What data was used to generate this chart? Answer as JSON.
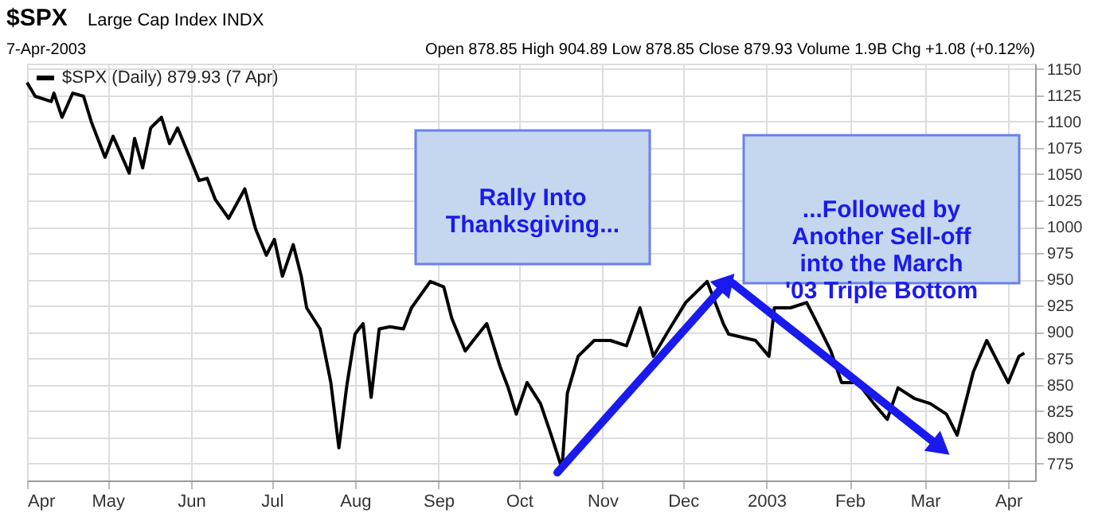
{
  "chart_data": {
    "type": "line",
    "title": "$SPX",
    "subtitle": "Large Cap Index INDX",
    "annotations": [
      "7-Apr-2003",
      "Open 878.85  High 904.89  Low 878.85  Close 879.93  Volume 1.9B  Chg +1.08 (+0.12%)",
      "Rally Into\nThanksgiving...",
      "...Followed by\nAnother Sell-off\ninto the March\n'03 Triple Bottom"
    ],
    "x": [
      "2002-04-01",
      "2002-04-04",
      "2002-04-10",
      "2002-04-11",
      "2002-04-14",
      "2002-04-18",
      "2002-04-22",
      "2002-04-25",
      "2002-04-30",
      "2002-05-03",
      "2002-05-09",
      "2002-05-11",
      "2002-05-14",
      "2002-05-17",
      "2002-05-21",
      "2002-05-24",
      "2002-05-27",
      "2002-05-31",
      "2002-06-04",
      "2002-06-07",
      "2002-06-10",
      "2002-06-15",
      "2002-06-21",
      "2002-06-25",
      "2002-06-29",
      "2002-07-02",
      "2002-07-05",
      "2002-07-09",
      "2002-07-12",
      "2002-07-14",
      "2002-07-19",
      "2002-07-23",
      "2002-07-26",
      "2002-07-29",
      "2002-08-01",
      "2002-08-04",
      "2002-08-07",
      "2002-08-10",
      "2002-08-14",
      "2002-08-19",
      "2002-08-22",
      "2002-08-29",
      "2002-09-03",
      "2002-09-06",
      "2002-09-11",
      "2002-09-14",
      "2002-09-19",
      "2002-09-24",
      "2002-09-27",
      "2002-09-30",
      "2002-10-04",
      "2002-10-09",
      "2002-10-13",
      "2002-10-17",
      "2002-10-19",
      "2002-10-23",
      "2002-10-29",
      "2002-11-04",
      "2002-11-10",
      "2002-11-15",
      "2002-11-20",
      "2002-11-26",
      "2002-12-02",
      "2002-12-06",
      "2002-12-10",
      "2002-12-16",
      "2002-12-18",
      "2002-12-28",
      "2003-01-02",
      "2003-01-04",
      "2003-01-10",
      "2003-01-16",
      "2003-01-20",
      "2003-01-25",
      "2003-01-29",
      "2003-02-04",
      "2003-02-10",
      "2003-02-15",
      "2003-02-19",
      "2003-02-25",
      "2003-03-03",
      "2003-03-09",
      "2003-03-13",
      "2003-03-16",
      "2003-03-19",
      "2003-03-24",
      "2003-03-29",
      "2003-04-01",
      "2003-04-05",
      "2003-04-07"
    ],
    "series": [
      {
        "name": "$SPX (Daily) 879.93 (7 Apr)",
        "color": "#000000",
        "values": [
          1137,
          1124,
          1119,
          1127,
          1104,
          1127,
          1124,
          1099,
          1066,
          1086,
          1051,
          1084,
          1056,
          1094,
          1104,
          1079,
          1094,
          1069,
          1044,
          1046,
          1026,
          1008,
          1036,
          998,
          973,
          988,
          953,
          983,
          953,
          923,
          903,
          852,
          790,
          850,
          898,
          908,
          838,
          903,
          905,
          903,
          923,
          948,
          943,
          913,
          882,
          892,
          908,
          867,
          847,
          822,
          852,
          832,
          802,
          770,
          842,
          877,
          892,
          892,
          887,
          923,
          877,
          903,
          928,
          938,
          948,
          908,
          898,
          892,
          877,
          923,
          923,
          928,
          908,
          882,
          852,
          852,
          832,
          817,
          847,
          837,
          832,
          822,
          802,
          832,
          862,
          892,
          867,
          852,
          877,
          880
        ]
      }
    ],
    "xlim": [
      "2002-04-01",
      "2003-04-11"
    ],
    "xticks": [
      {
        "value": "2002-04-01",
        "label": "Apr"
      },
      {
        "value": "2002-05-01",
        "label": "May"
      },
      {
        "value": "2002-06-01",
        "label": "Jun"
      },
      {
        "value": "2002-07-01",
        "label": "Jul"
      },
      {
        "value": "2002-08-01",
        "label": "Aug"
      },
      {
        "value": "2002-09-01",
        "label": "Sep"
      },
      {
        "value": "2002-10-01",
        "label": "Oct"
      },
      {
        "value": "2002-11-01",
        "label": "Nov"
      },
      {
        "value": "2002-12-01",
        "label": "Dec"
      },
      {
        "value": "2003-01-01",
        "label": "2003"
      },
      {
        "value": "2003-02-01",
        "label": "Feb"
      },
      {
        "value": "2003-03-01",
        "label": "Mar"
      },
      {
        "value": "2003-04-01",
        "label": "Apr"
      }
    ],
    "ylim": [
      759,
      1155
    ],
    "yticks": [
      775,
      800,
      825,
      850,
      875,
      900,
      925,
      950,
      975,
      1000,
      1025,
      1050,
      1075,
      1100,
      1125,
      1150
    ],
    "grid": true,
    "legend": "top left",
    "marker": "none",
    "line_style": "solid"
  }
}
